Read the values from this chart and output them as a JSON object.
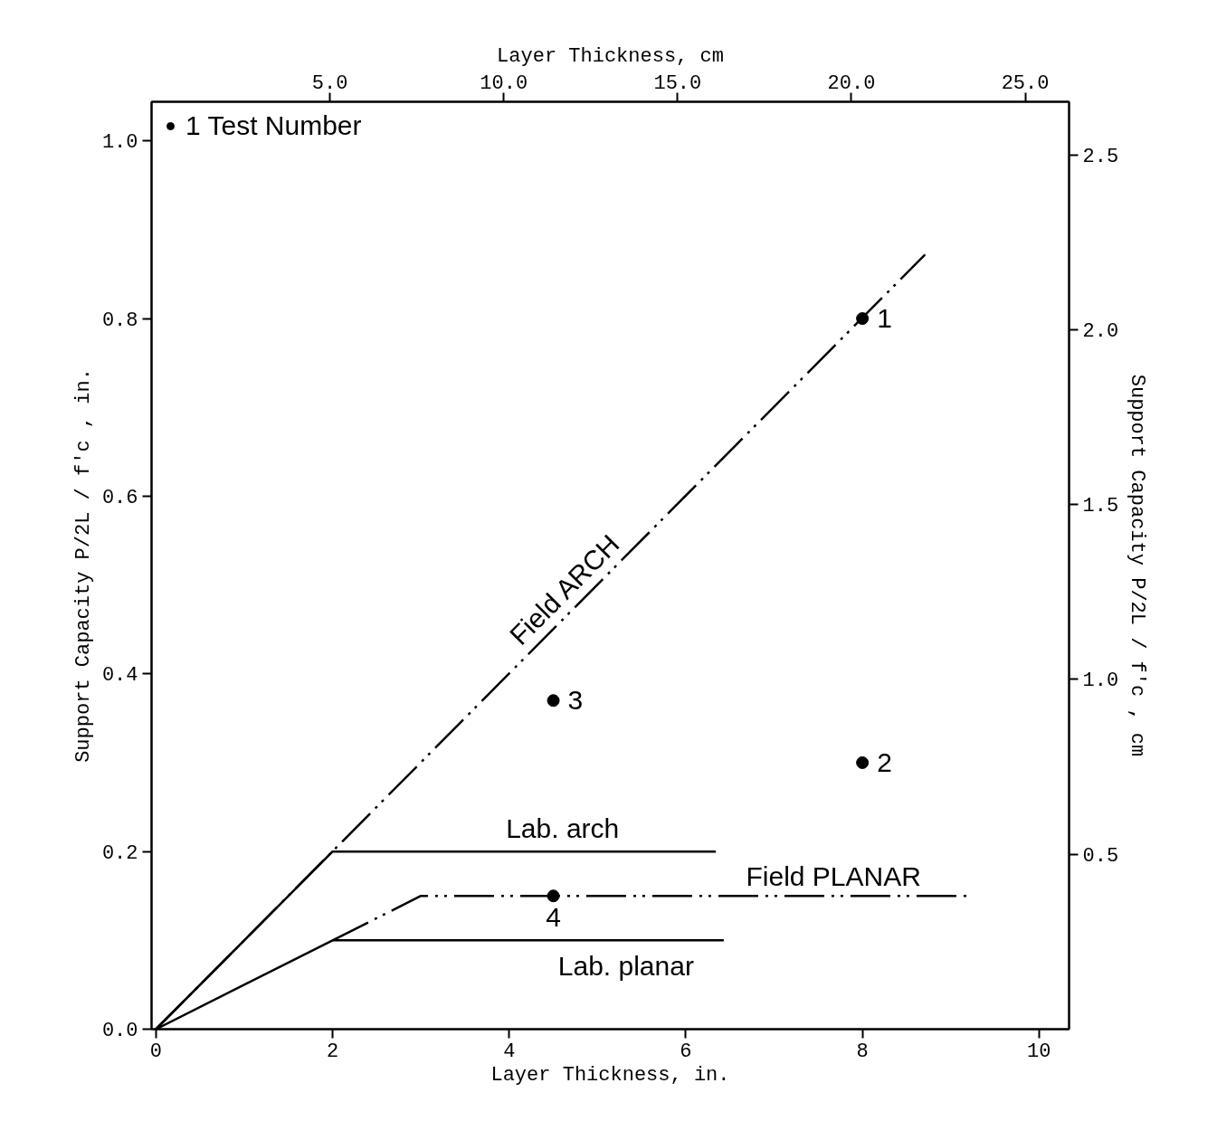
{
  "chart_data": {
    "type": "line",
    "xlabel": "Layer Thickness, in.",
    "x2label": "Layer Thickness, cm",
    "ylabel": "Support Capacity P/2L / f′c , in.",
    "y2label": "Support Capacity P/2L / f′c , cm",
    "xlim": [
      -0.05,
      10.34
    ],
    "xticks": [
      0,
      2,
      4,
      6,
      8,
      10
    ],
    "x2lim": [
      -0.13,
      26.26
    ],
    "x2ticks": [
      {
        "value": 5,
        "label": "5.0"
      },
      {
        "value": 10,
        "label": "10.0"
      },
      {
        "value": 15,
        "label": "15.0"
      },
      {
        "value": 20,
        "label": "20.0"
      },
      {
        "value": 25,
        "label": "25.0"
      }
    ],
    "ylim": [
      0,
      1.044
    ],
    "yticks": [
      {
        "value": 0,
        "label": "0.0"
      },
      {
        "value": 0.2,
        "label": "0.2"
      },
      {
        "value": 0.4,
        "label": "0.4"
      },
      {
        "value": 0.6,
        "label": "0.6"
      },
      {
        "value": 0.8,
        "label": "0.8"
      },
      {
        "value": 1.0,
        "label": "1.0"
      }
    ],
    "y2lim": [
      0,
      2.652
    ],
    "y2ticks": [
      {
        "value": 0.5,
        "label": "0.5"
      },
      {
        "value": 1.0,
        "label": "1.0"
      },
      {
        "value": 1.5,
        "label": "1.5"
      },
      {
        "value": 2.0,
        "label": "2.0"
      },
      {
        "value": 2.5,
        "label": "2.5"
      }
    ],
    "grid": false,
    "legend": "top left",
    "series": [
      {
        "name": "Field ARCH",
        "color": "#000000",
        "line_style": "dashed",
        "x": [
          0,
          8.71
        ],
        "values": [
          0,
          0.872
        ]
      },
      {
        "name": "Lab. arch",
        "color": "#000000",
        "line_style": "solid",
        "x": [
          0,
          2,
          6.34
        ],
        "values": [
          0,
          0.2,
          0.2
        ]
      },
      {
        "name": "Lab. planar",
        "color": "#000000",
        "line_style": "solid",
        "x": [
          0,
          2,
          6.43
        ],
        "values": [
          0,
          0.1,
          0.1
        ]
      },
      {
        "name": "Field PLANAR",
        "color": "#000000",
        "line_style": "dashed",
        "x": [
          2,
          3,
          9.23
        ],
        "values": [
          0.1,
          0.15,
          0.15
        ]
      },
      {
        "type": "scatter",
        "name": "1 Test Number",
        "color": "#000000",
        "marker": "circle",
        "x": [
          8.0,
          8.0,
          4.5,
          4.5
        ],
        "values": [
          0.8,
          0.3,
          0.37,
          0.15
        ]
      }
    ],
    "annotations": [
      "1",
      "2",
      "3",
      "4"
    ]
  }
}
